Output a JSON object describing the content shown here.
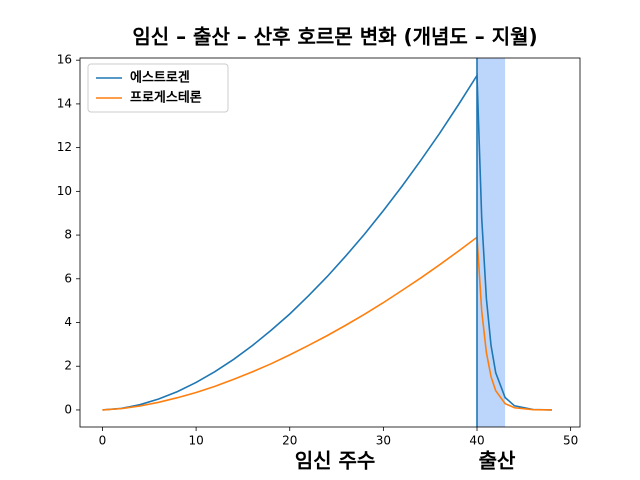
{
  "chart_data": {
    "type": "line",
    "title": "임신 – 출산 – 산후 호르몬 변화 (개념도 – 지월)",
    "x_label": "임신 주수",
    "annotation": "출산",
    "x": [
      0,
      2,
      4,
      6,
      8,
      10,
      12,
      14,
      16,
      18,
      20,
      22,
      24,
      26,
      28,
      30,
      32,
      34,
      36,
      38,
      40,
      40.5,
      41,
      41.5,
      42,
      43,
      44,
      46,
      48
    ],
    "series": [
      {
        "name": "에스트로겐",
        "color": "#1f77b4",
        "values": [
          0,
          0.07,
          0.24,
          0.5,
          0.84,
          1.26,
          1.75,
          2.31,
          2.94,
          3.64,
          4.39,
          5.22,
          6.1,
          7.05,
          8.05,
          9.12,
          10.24,
          11.42,
          12.65,
          13.95,
          15.3,
          8.8,
          5.1,
          2.94,
          1.7,
          0.57,
          0.19,
          0.02,
          0
        ]
      },
      {
        "name": "프로게스테론",
        "color": "#ff7f0e",
        "values": [
          0,
          0.06,
          0.18,
          0.35,
          0.56,
          0.8,
          1.08,
          1.4,
          1.74,
          2.11,
          2.52,
          2.95,
          3.4,
          3.88,
          4.38,
          4.91,
          5.47,
          6.04,
          6.64,
          7.26,
          7.9,
          4.54,
          2.63,
          1.52,
          0.88,
          0.29,
          0.1,
          0.01,
          0
        ]
      }
    ],
    "shade": [
      40,
      43
    ],
    "shade_color": "#bcd6fb",
    "vline": 40,
    "vline_color": "#1f77b4",
    "xlim": [
      -2.4,
      51
    ],
    "xticks": [
      0,
      10,
      20,
      30,
      40,
      50
    ],
    "ylim": [
      -0.78,
      16.1
    ],
    "yticks": [
      0,
      2,
      4,
      6,
      8,
      10,
      12,
      14,
      16
    ],
    "legend": "upper left",
    "grid": false
  }
}
